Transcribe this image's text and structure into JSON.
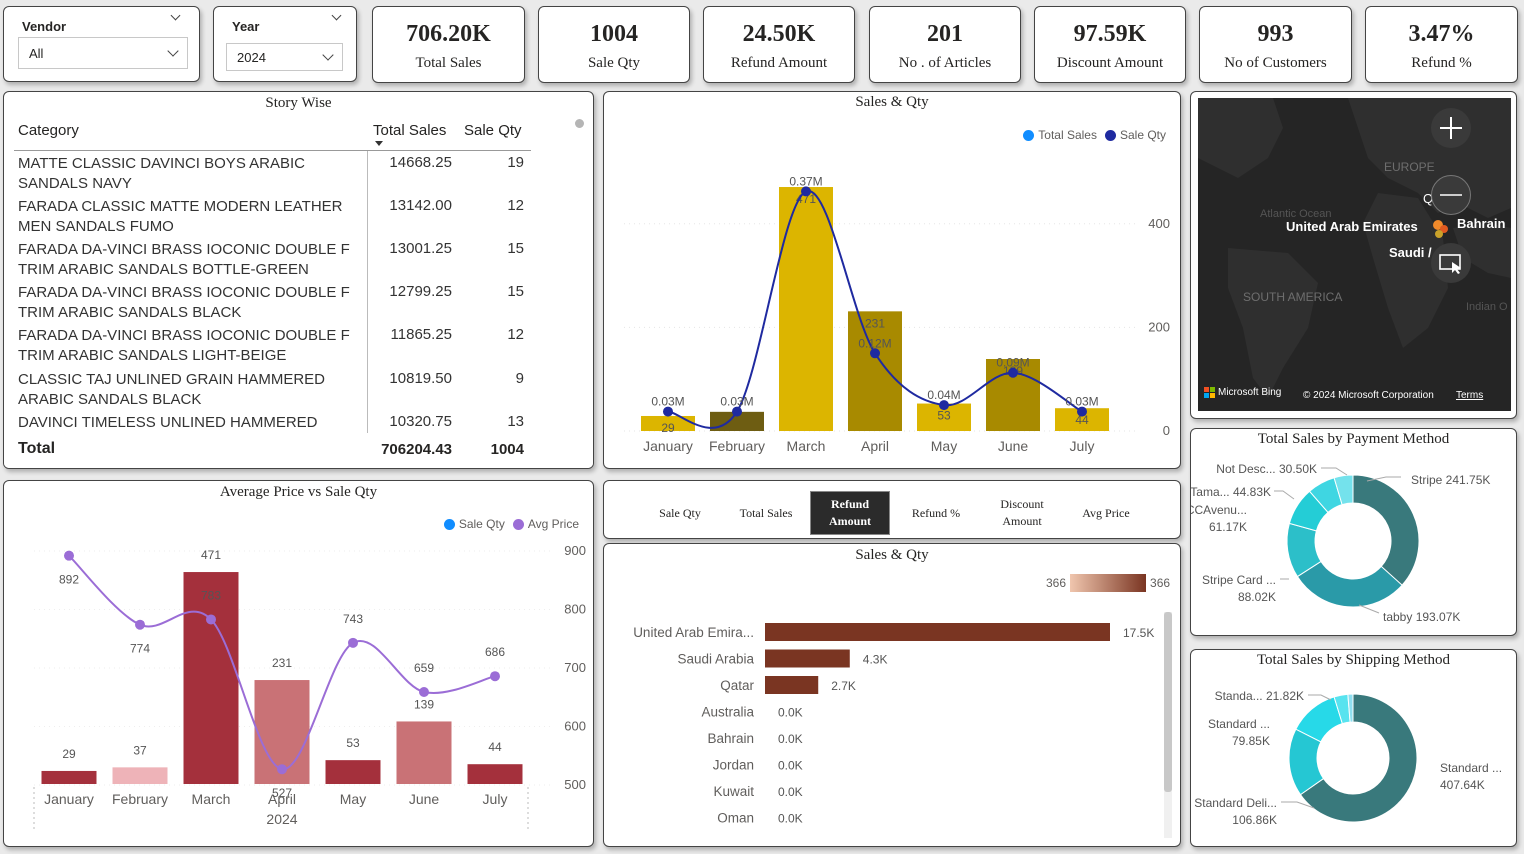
{
  "slicers": {
    "vendor": {
      "title": "Vendor",
      "value": "All"
    },
    "year": {
      "title": "Year",
      "value": "2024"
    }
  },
  "kpis": [
    {
      "value": "706.20K",
      "label": "Total Sales"
    },
    {
      "value": "1004",
      "label": "Sale Qty"
    },
    {
      "value": "24.50K",
      "label": "Refund Amount"
    },
    {
      "value": "201",
      "label": "No . of Articles"
    },
    {
      "value": "97.59K",
      "label": "Discount Amount"
    },
    {
      "value": "993",
      "label": "No of Customers"
    },
    {
      "value": "3.47%",
      "label": "Refund %"
    }
  ],
  "story": {
    "title": "Story Wise",
    "headers": {
      "category": "Category",
      "sales": "Total Sales",
      "qty": "Sale Qty"
    },
    "rows": [
      {
        "line1": "MATTE CLASSIC DAVINCI BOYS ARABIC",
        "line2": "SANDALS NAVY",
        "sales": "14668.25",
        "qty": "19"
      },
      {
        "line1": "FARADA CLASSIC MATTE MODERN LEATHER",
        "line2": "MEN SANDALS FUMO",
        "sales": "13142.00",
        "qty": "12"
      },
      {
        "line1": "FARADA DA-VINCI BRASS IOCONIC DOUBLE F",
        "line2": "TRIM ARABIC SANDALS BOTTLE-GREEN",
        "sales": "13001.25",
        "qty": "15"
      },
      {
        "line1": "FARADA DA-VINCI BRASS IOCONIC DOUBLE F",
        "line2": "TRIM ARABIC SANDALS BLACK",
        "sales": "12799.25",
        "qty": "15"
      },
      {
        "line1": "FARADA DA-VINCI BRASS IOCONIC DOUBLE F",
        "line2": "TRIM ARABIC SANDALS LIGHT-BEIGE",
        "sales": "11865.25",
        "qty": "12"
      },
      {
        "line1": "CLASSIC TAJ UNLINED GRAIN HAMMERED",
        "line2": "ARABIC SANDALS BLACK",
        "sales": "10819.50",
        "qty": "9"
      },
      {
        "line1": "DAVINCI TIMELESS UNLINED HAMMERED",
        "line2": "",
        "sales": "10320.75",
        "qty": "13"
      }
    ],
    "total": {
      "label": "Total",
      "sales": "706204.43",
      "qty": "1004"
    }
  },
  "map": {
    "labels": {
      "europe": "EUROPE",
      "atlantic": "Atlantic Ocean",
      "south_america": "SOUTH AMERICA",
      "indian": "Indian O",
      "uae": "United Arab Emirates",
      "bahrain": "Bahrain",
      "saudi": "Saudi /",
      "q": "Q"
    },
    "bing": "Microsoft Bing",
    "copyright": "© 2024 Microsoft Corporation",
    "terms": "Terms"
  },
  "tabs": [
    {
      "label": "Sale Qty",
      "active": false
    },
    {
      "label": "Total Sales",
      "active": false
    },
    {
      "label": "Refund Amount",
      "active": true
    },
    {
      "label": "Refund %",
      "active": false
    },
    {
      "label": "Discount Amount",
      "active": false
    },
    {
      "label": "Avg Price",
      "active": false
    }
  ],
  "chart_data": [
    {
      "id": "sales_qty_combo",
      "type": "bar+line",
      "title": "Sales & Qty",
      "categories": [
        "January",
        "February",
        "March",
        "April",
        "May",
        "June",
        "July"
      ],
      "series": [
        {
          "name": "Total Sales",
          "type": "line",
          "values": [
            0.03,
            0.03,
            0.37,
            0.12,
            0.04,
            0.09,
            0.03
          ],
          "labels": [
            "0.03M",
            "0.03M",
            "0.37M",
            "0.12M",
            "0.04M",
            "0.09M",
            "0.03M"
          ],
          "color": "#1f2aa0"
        },
        {
          "name": "Sale Qty",
          "type": "bar",
          "values": [
            29,
            37,
            471,
            231,
            53,
            139,
            44
          ],
          "labels": [
            "29",
            "",
            "471",
            "231",
            "53",
            "139",
            "44"
          ],
          "colors": [
            "#dcb500",
            "#6e5d12",
            "#dcb500",
            "#a88a00",
            "#dcb500",
            "#a88a00",
            "#dcb500"
          ]
        }
      ],
      "y2_ticks": [
        "400",
        "200",
        "0"
      ],
      "legend_position": "top-right"
    },
    {
      "id": "avg_price_vs_qty",
      "type": "bar+line",
      "title": "Average Price vs Sale Qty",
      "categories": [
        "January",
        "February",
        "March",
        "April",
        "May",
        "June",
        "July"
      ],
      "x_sublabel": "2024",
      "series": [
        {
          "name": "Sale Qty",
          "type": "bar",
          "values": [
            29,
            37,
            471,
            231,
            53,
            139,
            44
          ],
          "colors": [
            "#a4303c",
            "#eeb3b8",
            "#a4303c",
            "#c97276",
            "#a4303c",
            "#c97276",
            "#a4303c"
          ]
        },
        {
          "name": "Avg Price",
          "type": "line",
          "values": [
            892,
            774,
            783,
            527,
            743,
            659,
            686
          ],
          "color": "#9b6dd6"
        }
      ],
      "y2_ticks": [
        "900",
        "800",
        "700",
        "600",
        "500"
      ],
      "legend_position": "top-right"
    },
    {
      "id": "refund_by_country",
      "type": "bar",
      "orientation": "horizontal",
      "title": "Sales & Qty",
      "categories": [
        "United Arab Emira...",
        "Saudi Arabia",
        "Qatar",
        "Australia",
        "Bahrain",
        "Jordan",
        "Kuwait",
        "Oman"
      ],
      "values": [
        17.5,
        4.3,
        2.7,
        0,
        0,
        0,
        0,
        0
      ],
      "labels": [
        "17.5K",
        "4.3K",
        "2.7K",
        "0.0K",
        "0.0K",
        "0.0K",
        "0.0K",
        "0.0K"
      ],
      "color": "#7a3522",
      "scale_legend": {
        "min": "366",
        "max": "366"
      }
    },
    {
      "id": "payment_method",
      "type": "pie",
      "donut": true,
      "title": "Total Sales by Payment Method",
      "slices": [
        {
          "label": "Stripe",
          "value": 241.75,
          "text": "Stripe 241.75K",
          "color": "#39797c"
        },
        {
          "label": "tabby",
          "value": 193.07,
          "text": "tabby 193.07K",
          "color": "#2a9aa8"
        },
        {
          "label": "Stripe Card ...",
          "value": 88.02,
          "text": "Stripe Card ...\n88.02K",
          "color": "#2cbfc9"
        },
        {
          "label": "CCAvenu...",
          "value": 61.17,
          "text": "CCAvenu...\n61.17K",
          "color": "#24cdd6"
        },
        {
          "label": "Tama...",
          "value": 44.83,
          "text": "Tama... 44.83K",
          "color": "#3fd6e2"
        },
        {
          "label": "Not Desc...",
          "value": 30.5,
          "text": "Not Desc... 30.50K",
          "color": "#74e2ec"
        }
      ]
    },
    {
      "id": "shipping_method",
      "type": "pie",
      "donut": true,
      "title": "Total Sales by Shipping Method",
      "slices": [
        {
          "label": "Standard ...",
          "value": 407.64,
          "text": "Standard ...\n407.64K",
          "color": "#39797c"
        },
        {
          "label": "Standard Deli...",
          "value": 106.86,
          "text": "Standard Deli...\n106.86K",
          "color": "#25c7d3"
        },
        {
          "label": "Standard ...",
          "value": 79.85,
          "text": "Standard ...\n79.85K",
          "color": "#27d9e8"
        },
        {
          "label": "Standa...",
          "value": 21.82,
          "text": "Standa... 21.82K",
          "color": "#58e3ef"
        },
        {
          "label": "",
          "value": 8,
          "text": "",
          "color": "#8fdff0"
        }
      ]
    }
  ]
}
